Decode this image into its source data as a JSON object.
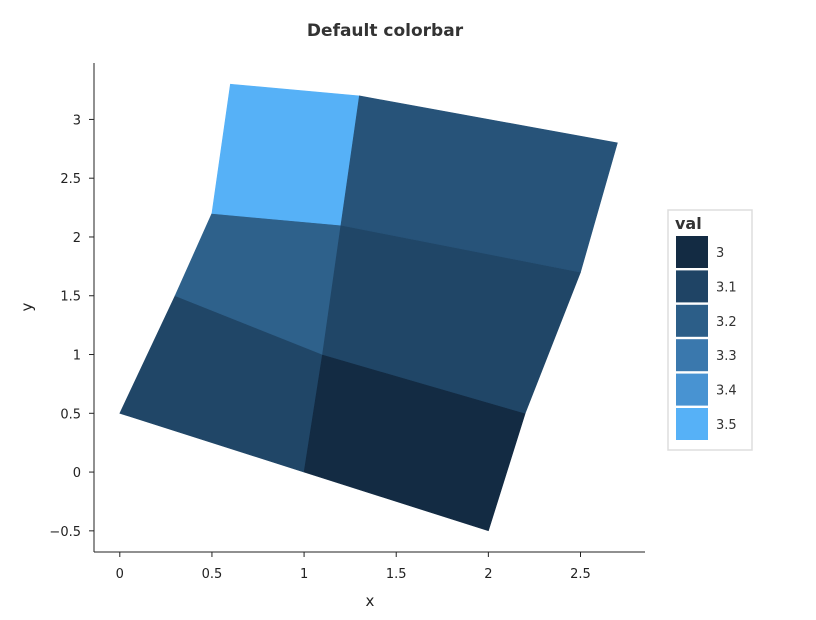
{
  "chart_data": {
    "type": "heatmap",
    "title": "Default colorbar",
    "xlabel": "x",
    "ylabel": "y",
    "xlim": [
      -0.14,
      2.85
    ],
    "ylim": [
      -0.68,
      3.48
    ],
    "x_ticks": [
      0,
      0.5,
      1,
      1.5,
      2,
      2.5
    ],
    "x_tick_labels": [
      "0",
      "0.5",
      "1",
      "1.5",
      "2",
      "2.5"
    ],
    "y_ticks": [
      -0.5,
      0,
      0.5,
      1,
      1.5,
      2,
      2.5,
      3
    ],
    "y_tick_labels": [
      "−0.5",
      "0",
      "0.5",
      "1",
      "1.5",
      "2",
      "2.5",
      "3"
    ],
    "grid": false,
    "legend_placement": "right",
    "legend": {
      "title": "val",
      "entries": [
        {
          "label": "3",
          "color": "#132b43"
        },
        {
          "label": "3.1",
          "color": "#1f4465"
        },
        {
          "label": "3.2",
          "color": "#2c5e88"
        },
        {
          "label": "3.3",
          "color": "#3a78ad"
        },
        {
          "label": "3.4",
          "color": "#4893d2"
        },
        {
          "label": "3.5",
          "color": "#56b1f7"
        }
      ]
    },
    "low_color": "#132b43",
    "high_color": "#56b1f7",
    "cells": [
      {
        "value": 3.1,
        "corners": [
          [
            0,
            0.5
          ],
          [
            1,
            0
          ],
          [
            1.1,
            1
          ],
          [
            0.3,
            1.5
          ]
        ]
      },
      {
        "value": 3.0,
        "corners": [
          [
            1,
            0
          ],
          [
            2,
            -0.5
          ],
          [
            2.2,
            0.5
          ],
          [
            1.1,
            1
          ]
        ]
      },
      {
        "value": 3.2,
        "corners": [
          [
            0.3,
            1.5
          ],
          [
            1.1,
            1
          ],
          [
            1.2,
            2.1
          ],
          [
            0.5,
            2.2
          ]
        ]
      },
      {
        "value": 3.1,
        "corners": [
          [
            1.1,
            1
          ],
          [
            2.2,
            0.5
          ],
          [
            2.5,
            1.7
          ],
          [
            1.2,
            2.1
          ]
        ]
      },
      {
        "value": 3.5,
        "corners": [
          [
            0.5,
            2.2
          ],
          [
            1.2,
            2.1
          ],
          [
            1.3,
            3.2
          ],
          [
            0.6,
            3.3
          ]
        ]
      },
      {
        "value": 3.15,
        "corners": [
          [
            1.2,
            2.1
          ],
          [
            2.5,
            1.7
          ],
          [
            2.7,
            2.8
          ],
          [
            1.3,
            3.2
          ]
        ]
      }
    ]
  }
}
